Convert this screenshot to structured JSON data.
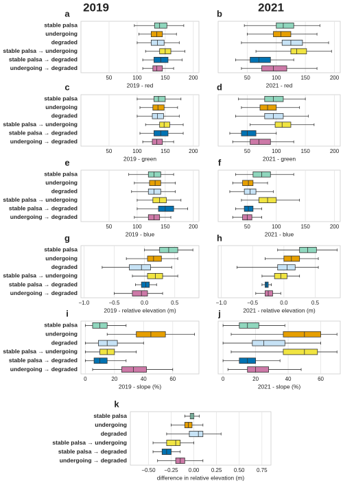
{
  "header": {
    "left": "2019",
    "right": "2021"
  },
  "chart_data": [
    {
      "type": "box",
      "label": "a",
      "xlabel": "2019 - red",
      "xlim": [
        0,
        210
      ],
      "xticks": [
        50,
        100,
        150,
        200
      ],
      "grid": true,
      "series": [
        {
          "name": "stable palsa",
          "color": "#8fd6bd",
          "values": [
            95,
            131,
            140,
            153,
            183
          ]
        },
        {
          "name": "undergoing",
          "color": "#e69f00",
          "values": [
            103,
            125,
            135,
            145,
            170
          ]
        },
        {
          "name": "degraded",
          "color": "#c6e2f5",
          "values": [
            100,
            125,
            136,
            148,
            175
          ]
        },
        {
          "name": "stable palsa → undergoing",
          "color": "#f0e442",
          "values": [
            115,
            140,
            150,
            160,
            185
          ]
        },
        {
          "name": "stable palsa → degraded",
          "color": "#0072b2",
          "values": [
            110,
            130,
            142,
            155,
            180
          ]
        },
        {
          "name": "undergoing → degraded",
          "color": "#cc79a7",
          "values": [
            110,
            128,
            135,
            145,
            165
          ]
        }
      ]
    },
    {
      "type": "box",
      "label": "b",
      "xlabel": "2021 - red",
      "xlim": [
        0,
        210
      ],
      "xticks": [
        50,
        100,
        150,
        200
      ],
      "grid": true,
      "series": [
        {
          "color": "#8fd6bd",
          "values": [
            45,
            100,
            112,
            130,
            175
          ]
        },
        {
          "color": "#e69f00",
          "values": [
            50,
            95,
            108,
            125,
            170
          ]
        },
        {
          "color": "#c6e2f5",
          "values": [
            40,
            110,
            125,
            145,
            190
          ]
        },
        {
          "color": "#f0e442",
          "values": [
            65,
            125,
            135,
            152,
            195
          ]
        },
        {
          "color": "#0072b2",
          "values": [
            30,
            55,
            70,
            90,
            130
          ]
        },
        {
          "color": "#cc79a7",
          "values": [
            40,
            75,
            95,
            118,
            170
          ]
        }
      ]
    },
    {
      "type": "box",
      "label": "c",
      "xlabel": "2019 - green",
      "xlim": [
        0,
        210
      ],
      "xticks": [
        50,
        100,
        150,
        200
      ],
      "grid": true,
      "series": [
        {
          "name": "stable palsa",
          "color": "#8fd6bd",
          "values": [
            100,
            130,
            138,
            150,
            178
          ]
        },
        {
          "name": "undergoing",
          "color": "#e69f00",
          "values": [
            105,
            128,
            137,
            148,
            172
          ]
        },
        {
          "name": "degraded",
          "color": "#c6e2f5",
          "values": [
            100,
            127,
            136,
            147,
            175
          ]
        },
        {
          "name": "stable palsa → undergoing",
          "color": "#f0e442",
          "values": [
            115,
            140,
            148,
            158,
            182
          ]
        },
        {
          "name": "stable palsa → degraded",
          "color": "#0072b2",
          "values": [
            105,
            130,
            142,
            155,
            182
          ]
        },
        {
          "name": "undergoing → degraded",
          "color": "#cc79a7",
          "values": [
            110,
            127,
            135,
            145,
            165
          ]
        }
      ]
    },
    {
      "type": "box",
      "label": "d",
      "xlabel": "2021 - green",
      "xlim": [
        0,
        210
      ],
      "xticks": [
        50,
        100,
        150,
        200
      ],
      "grid": true,
      "series": [
        {
          "color": "#8fd6bd",
          "values": [
            35,
            80,
            95,
            112,
            150
          ]
        },
        {
          "color": "#e69f00",
          "values": [
            40,
            72,
            85,
            100,
            140
          ]
        },
        {
          "color": "#c6e2f5",
          "values": [
            30,
            80,
            95,
            112,
            155
          ]
        },
        {
          "color": "#f0e442",
          "values": [
            55,
            98,
            110,
            125,
            165
          ]
        },
        {
          "color": "#0072b2",
          "values": [
            20,
            40,
            50,
            65,
            100
          ]
        },
        {
          "color": "#cc79a7",
          "values": [
            25,
            55,
            70,
            90,
            130
          ]
        }
      ]
    },
    {
      "type": "box",
      "label": "e",
      "xlabel": "2019 - blue",
      "xlim": [
        0,
        210
      ],
      "xticks": [
        50,
        100,
        150,
        200
      ],
      "grid": true,
      "series": [
        {
          "name": "stable palsa",
          "color": "#8fd6bd",
          "values": [
            85,
            120,
            130,
            142,
            165
          ]
        },
        {
          "name": "undergoing",
          "color": "#e69f00",
          "values": [
            95,
            122,
            132,
            142,
            168
          ]
        },
        {
          "name": "degraded",
          "color": "#c6e2f5",
          "values": [
            90,
            120,
            130,
            142,
            168
          ]
        },
        {
          "name": "stable palsa → undergoing",
          "color": "#f0e442",
          "values": [
            100,
            128,
            140,
            152,
            178
          ]
        },
        {
          "name": "stable palsa → degraded",
          "color": "#0072b2",
          "values": [
            100,
            138,
            150,
            165,
            190
          ]
        },
        {
          "name": "undergoing → degraded",
          "color": "#cc79a7",
          "values": [
            95,
            120,
            130,
            140,
            160
          ]
        }
      ]
    },
    {
      "type": "box",
      "label": "f",
      "xlabel": "2021 - blue",
      "xlim": [
        0,
        210
      ],
      "xticks": [
        50,
        100,
        150,
        200
      ],
      "grid": true,
      "series": [
        {
          "color": "#8fd6bd",
          "values": [
            30,
            60,
            75,
            90,
            130
          ]
        },
        {
          "color": "#e69f00",
          "values": [
            25,
            42,
            52,
            60,
            85
          ]
        },
        {
          "color": "#c6e2f5",
          "values": [
            20,
            45,
            55,
            65,
            95
          ]
        },
        {
          "color": "#f0e442",
          "values": [
            40,
            70,
            85,
            100,
            140
          ]
        },
        {
          "color": "#0072b2",
          "values": [
            30,
            45,
            52,
            60,
            75
          ]
        },
        {
          "color": "#cc79a7",
          "values": [
            25,
            42,
            50,
            58,
            75
          ]
        }
      ]
    },
    {
      "type": "box",
      "label": "g",
      "xlabel": "2019 - relative elevation (m)",
      "xlim": [
        -1.05,
        0.9
      ],
      "xticks": [
        {
          "value": -1,
          "label": "−1.0"
        },
        {
          "value": -0.5,
          "label": "−0.5"
        },
        {
          "value": 0,
          "label": "0.0"
        },
        0.5
      ],
      "grid": true,
      "series": [
        {
          "name": "stable palsa",
          "color": "#8fd6bd",
          "values": [
            0.0,
            0.25,
            0.4,
            0.55,
            0.8
          ]
        },
        {
          "name": "undergoing",
          "color": "#e69f00",
          "values": [
            -0.3,
            0.05,
            0.15,
            0.28,
            0.55
          ]
        },
        {
          "name": "degraded",
          "color": "#c6e2f5",
          "values": [
            -0.7,
            -0.25,
            -0.05,
            0.1,
            0.45
          ]
        },
        {
          "name": "stable palsa → undergoing",
          "color": "#f0e442",
          "values": [
            -0.2,
            0.05,
            0.18,
            0.3,
            0.55
          ]
        },
        {
          "name": "stable palsa → degraded",
          "color": "#0072b2",
          "values": [
            -0.15,
            -0.05,
            0.02,
            0.08,
            0.2
          ]
        },
        {
          "name": "undergoing → degraded",
          "color": "#cc79a7",
          "values": [
            -0.5,
            -0.2,
            -0.05,
            0.05,
            0.3
          ]
        }
      ]
    },
    {
      "type": "box",
      "label": "h",
      "xlabel": "2021 - relative elevation (m)",
      "xlim": [
        -1.05,
        0.9
      ],
      "xticks": [
        {
          "value": -1,
          "label": "−1.0"
        },
        {
          "value": -0.5,
          "label": "−0.5"
        },
        {
          "value": 0,
          "label": "0.0"
        },
        0.5
      ],
      "grid": true,
      "series": [
        {
          "color": "#8fd6bd",
          "values": [
            -0.1,
            0.25,
            0.38,
            0.52,
            0.85
          ]
        },
        {
          "color": "#e69f00",
          "values": [
            -0.3,
            0.0,
            0.12,
            0.25,
            0.55
          ]
        },
        {
          "color": "#c6e2f5",
          "values": [
            -0.75,
            -0.1,
            0.05,
            0.18,
            0.55
          ]
        },
        {
          "color": "#f0e442",
          "values": [
            -0.35,
            -0.15,
            -0.05,
            0.05,
            0.25
          ]
        },
        {
          "color": "#0072b2",
          "values": [
            -0.35,
            -0.3,
            -0.28,
            -0.25,
            -0.2
          ]
        },
        {
          "color": "#cc79a7",
          "values": [
            -0.45,
            -0.3,
            -0.25,
            -0.18,
            -0.05
          ]
        }
      ]
    },
    {
      "type": "box",
      "label": "i",
      "xlabel": "2019 - slope (%)",
      "xlim": [
        -3,
        78
      ],
      "xticks": [
        0,
        20,
        40,
        60
      ],
      "grid": true,
      "series": [
        {
          "name": "stable palsa",
          "color": "#8fd6bd",
          "values": [
            0,
            5,
            10,
            15,
            28
          ]
        },
        {
          "name": "undergoing",
          "color": "#e69f00",
          "values": [
            15,
            35,
            45,
            55,
            75
          ]
        },
        {
          "name": "degraded",
          "color": "#c6e2f5",
          "values": [
            0,
            9,
            15,
            22,
            40
          ]
        },
        {
          "name": "stable palsa → undergoing",
          "color": "#f0e442",
          "values": [
            0,
            10,
            15,
            20,
            35
          ]
        },
        {
          "name": "stable palsa → degraded",
          "color": "#0072b2",
          "values": [
            0,
            6,
            10,
            15,
            28
          ]
        },
        {
          "name": "undergoing → degraded",
          "color": "#cc79a7",
          "values": [
            5,
            25,
            33,
            42,
            60
          ]
        }
      ]
    },
    {
      "type": "box",
      "label": "j",
      "xlabel": "2021 - slope (%)",
      "xlim": [
        -3,
        72
      ],
      "xticks": [
        0,
        20,
        40,
        60
      ],
      "grid": true,
      "series": [
        {
          "color": "#8fd6bd",
          "values": [
            0,
            10,
            15,
            22,
            38
          ]
        },
        {
          "color": "#e69f00",
          "values": [
            5,
            37,
            50,
            60,
            70
          ]
        },
        {
          "color": "#c6e2f5",
          "values": [
            0,
            18,
            25,
            38,
            60
          ]
        },
        {
          "color": "#f0e442",
          "values": [
            5,
            37,
            50,
            58,
            70
          ]
        },
        {
          "color": "#0072b2",
          "values": [
            0,
            10,
            15,
            20,
            35
          ]
        },
        {
          "color": "#cc79a7",
          "values": [
            3,
            15,
            20,
            28,
            48
          ]
        }
      ]
    },
    {
      "type": "box",
      "label": "k",
      "xlabel": "difference in relative elevation (m)",
      "xlim": [
        -0.7,
        0.85
      ],
      "xticks": [
        {
          "value": -0.5,
          "label": "−0.50"
        },
        {
          "value": -0.25,
          "label": "−0.25"
        },
        {
          "value": 0,
          "label": "0.00"
        },
        0.25,
        {
          "value": 0.5,
          "label": "0.50"
        },
        0.75
      ],
      "grid": true,
      "series": [
        {
          "name": "stable palsa",
          "color": "#8fd6bd",
          "values": [
            -0.1,
            -0.04,
            -0.02,
            0.0,
            0.06
          ]
        },
        {
          "name": "undergoing",
          "color": "#e69f00",
          "values": [
            -0.25,
            -0.1,
            -0.06,
            -0.02,
            0.1
          ]
        },
        {
          "name": "degraded",
          "color": "#c6e2f5",
          "values": [
            -0.3,
            -0.05,
            0.05,
            0.1,
            0.3
          ]
        },
        {
          "name": "stable palsa → undergoing",
          "color": "#f0e442",
          "values": [
            -0.45,
            -0.3,
            -0.2,
            -0.15,
            0.0
          ]
        },
        {
          "name": "stable palsa → degraded",
          "color": "#0072b2",
          "values": [
            -0.45,
            -0.35,
            -0.3,
            -0.25,
            -0.15
          ]
        },
        {
          "name": "undergoing → degraded",
          "color": "#cc79a7",
          "values": [
            -0.4,
            -0.2,
            -0.15,
            -0.1,
            0.1
          ]
        }
      ]
    }
  ]
}
